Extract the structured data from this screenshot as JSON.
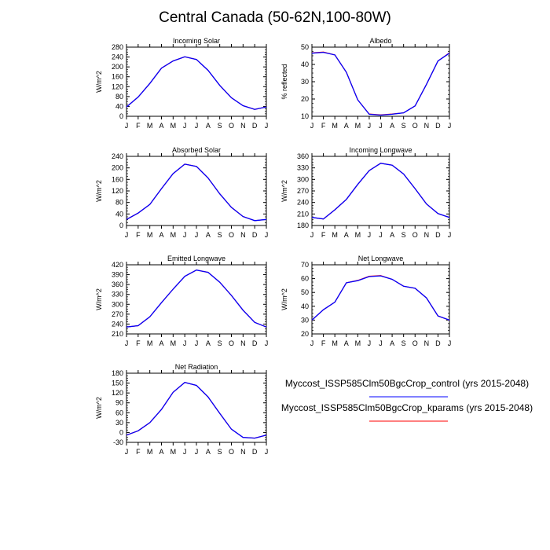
{
  "title": "Central Canada (50-62N,100-80W)",
  "months": [
    "J",
    "F",
    "M",
    "A",
    "M",
    "J",
    "J",
    "A",
    "S",
    "O",
    "N",
    "D",
    "J"
  ],
  "legend": [
    {
      "label": "Myccost_ISSP585Clm50BgcCrop_control (yrs 2015-2048)",
      "color": "#0000ff"
    },
    {
      "label": "Myccost_ISSP585Clm50BgcCrop_kparams (yrs 2015-2048)",
      "color": "#ff0000"
    }
  ],
  "chart_data": [
    {
      "type": "line",
      "title": "Incoming Solar",
      "ylabel": "W/m^2",
      "ylim": [
        0,
        280
      ],
      "yticks": [
        0,
        40,
        80,
        120,
        160,
        200,
        240,
        280
      ],
      "series": [
        {
          "name": "control",
          "values": [
            38,
            78,
            133,
            195,
            224,
            241,
            230,
            186,
            125,
            75,
            43,
            28,
            38
          ]
        },
        {
          "name": "kparams",
          "values": [
            38,
            78,
            133,
            195,
            224,
            241,
            230,
            186,
            125,
            75,
            43,
            28,
            38
          ]
        }
      ]
    },
    {
      "type": "line",
      "title": "Albedo",
      "ylabel": "% reflected",
      "ylim": [
        10,
        50
      ],
      "yticks": [
        10,
        20,
        30,
        40,
        50
      ],
      "series": [
        {
          "name": "control",
          "values": [
            46.5,
            47,
            45.5,
            35.5,
            19.5,
            11.2,
            10.7,
            11.2,
            12,
            16,
            28.5,
            42,
            46.5
          ]
        },
        {
          "name": "kparams",
          "values": [
            46.7,
            47.2,
            45.5,
            35.5,
            19.5,
            11.3,
            10.8,
            11.3,
            12,
            16,
            28.5,
            42,
            46.7
          ]
        }
      ]
    },
    {
      "type": "line",
      "title": "Absorbed Solar",
      "ylabel": "W/m^2",
      "ylim": [
        0,
        240
      ],
      "yticks": [
        0,
        40,
        80,
        120,
        160,
        200,
        240
      ],
      "series": [
        {
          "name": "control",
          "values": [
            21,
            43,
            73,
            128,
            180,
            213,
            205,
            165,
            110,
            63,
            31,
            17,
            21
          ]
        },
        {
          "name": "kparams",
          "values": [
            21,
            43,
            73,
            128,
            180,
            213,
            205,
            165,
            110,
            63,
            31,
            17,
            21
          ]
        }
      ]
    },
    {
      "type": "line",
      "title": "Incoming Longwave",
      "ylabel": "W/m^2",
      "ylim": [
        180,
        360
      ],
      "yticks": [
        180,
        210,
        240,
        270,
        300,
        330,
        360
      ],
      "series": [
        {
          "name": "control",
          "values": [
            201,
            197,
            221,
            248,
            287,
            323,
            342,
            337,
            314,
            276,
            236,
            211,
            201
          ]
        },
        {
          "name": "kparams",
          "values": [
            201,
            197,
            221,
            248,
            287,
            323,
            342,
            337,
            314,
            276,
            236,
            211,
            201
          ]
        }
      ]
    },
    {
      "type": "line",
      "title": "Emitted Longwave",
      "ylabel": "W/m^2",
      "ylim": [
        210,
        420
      ],
      "yticks": [
        210,
        240,
        270,
        300,
        330,
        360,
        390,
        420
      ],
      "series": [
        {
          "name": "control",
          "values": [
            231,
            235,
            262,
            305,
            346,
            385,
            404,
            397,
            367,
            327,
            282,
            245,
            231
          ]
        },
        {
          "name": "kparams",
          "values": [
            231,
            235,
            262,
            305,
            346,
            385,
            404,
            397,
            367,
            327,
            282,
            245,
            231
          ]
        }
      ]
    },
    {
      "type": "line",
      "title": "Net Longwave",
      "ylabel": "W/m^2",
      "ylim": [
        20,
        70
      ],
      "yticks": [
        20,
        30,
        40,
        50,
        60,
        70
      ],
      "series": [
        {
          "name": "control",
          "values": [
            30,
            37.5,
            43,
            57,
            58.5,
            61.5,
            62,
            59.5,
            54.5,
            53,
            46,
            33,
            30
          ]
        },
        {
          "name": "kparams",
          "values": [
            30,
            37.5,
            43,
            57,
            58.7,
            61.7,
            62.2,
            59.5,
            54.5,
            53,
            46,
            33,
            30
          ]
        }
      ]
    },
    {
      "type": "line",
      "title": "Net Radiation",
      "ylabel": "W/m^2",
      "ylim": [
        -30,
        180
      ],
      "yticks": [
        -30,
        0,
        30,
        60,
        90,
        120,
        150,
        180
      ],
      "series": [
        {
          "name": "control",
          "values": [
            -8,
            5,
            30,
            70,
            122,
            152,
            143,
            108,
            58,
            10,
            -15,
            -17,
            -8
          ]
        },
        {
          "name": "kparams",
          "values": [
            -8,
            5,
            30,
            70,
            122,
            152,
            143,
            108,
            58,
            10,
            -15,
            -17,
            -8
          ]
        }
      ]
    }
  ]
}
